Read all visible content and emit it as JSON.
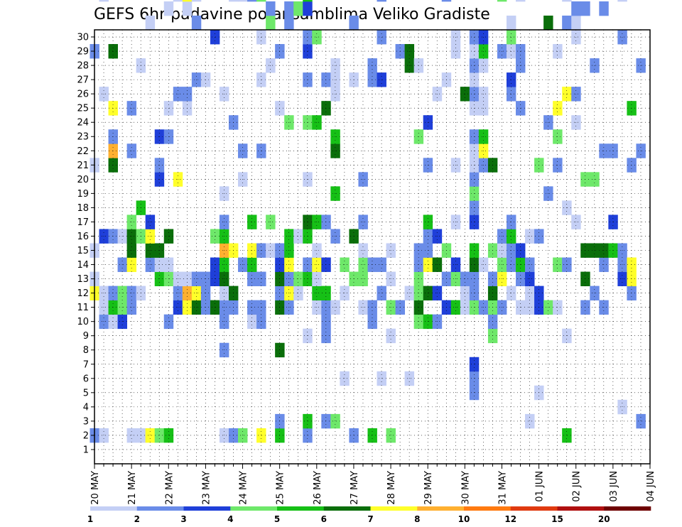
{
  "chart_data": {
    "type": "heatmap",
    "title": "GEFS 6hr padavine po ansamblima Veliko Gradiste",
    "x_tick_labels": [
      "20 MAY",
      "21 MAY",
      "22 MAY",
      "23 MAY",
      "24 MAY",
      "25 MAY",
      "26 MAY",
      "27 MAY",
      "28 MAY",
      "29 MAY",
      "30 MAY",
      "31 MAY",
      "01 JUN",
      "02 JUN",
      "03 JUN",
      "04 JUN"
    ],
    "y_tick_labels": [
      "1",
      "2",
      "3",
      "4",
      "5",
      "6",
      "7",
      "8",
      "9",
      "10",
      "11",
      "12",
      "13",
      "14",
      "15",
      "16",
      "17",
      "18",
      "19",
      "20",
      "21",
      "22",
      "23",
      "24",
      "25",
      "26",
      "27",
      "28",
      "29",
      "30"
    ],
    "members": 30,
    "time_steps": 61,
    "steps_per_day": 4,
    "grid": true,
    "colorbar": {
      "labels": [
        "1",
        "2",
        "3",
        "4",
        "5",
        "6",
        "7",
        "8",
        "10",
        "12",
        "15",
        "20"
      ],
      "colors": [
        "#c4cff5",
        "#6a8ce8",
        "#1f3fd9",
        "#6ee86a",
        "#16c016",
        "#0a6e0a",
        "#ffff2a",
        "#ffb030",
        "#ff7a10",
        "#e03a10",
        "#b01010",
        "#6e0000"
      ]
    },
    "grid_rows": [
      ".B.........GA.A.....A.......B.....A.....B.........A........",
      ".A.......BAA...C.........A......A..........B..E.....A.A.A..",
      ".........AEB...B....FHB.G...F....DDED.D.B..BGBCC...B.GA..B..",
      ".........CDD.B.A..................B........BC.......AA...A..",
      ".A........BB.GFFD....B..B...........F.........B....A....B.A.",
      ".A.........A...D.E.........A.....B.....A.......D............",
      ".G...........BFGC.............A....B..DB...D.......B...BA...",
      ".D..........EAF....CB.C..........AG.AB.........DB...........",
      ".E.......B..DA.F......B.A......A.GC...B...BEB..CA...C...E...",
      "..........CBA......G.....B......A.C..B.......H.........A..B.",
      "..........GHA...........AB.....AGD....BC....A...A...AB...A..",
      "..........FGB.............B...B.A.A.C..FH..BHA..............",
      "..........BBB.............A........G.AD.........DB..........",
      "..........F.CC.D.............C......F........G.............",
      ".A.....B.BBAFEHEB.A......A..........A..........B.....A.B...",
      ".B........BF..G........B........A........A.B...C..BH...A..A",
      ".D...........B.....A.B..........A..........A.....B.B....A..",
      ".........AB.BEG.E...............B...A.......EB.......AA...A",
      ".G.......BB.B.B......B....A..A..D...........CG.DB.....DB...",
      "..............A.D..........A..DB...DD...DCAE.EC.......B..CB",
      ".EB....F..FBFCB.........A...B...........BAAA....B.A.......B",
      "..........BGBGEE.......D......BB...D.............ED.F....B.",
      "...........AD..A...............D.....AC...B....C.A..A.....E",
      ".BE.....A...EB.EF..A...D..B.CB.CE..BE...A.B.AA..E..A...E...",
      "..........AEAGA.E......E.....D...B..CD.....D...G......A.B..",
      "..B.....BBBE.C..B.......F.B...........DB.B.GD.......D....BA",
      "..D.......A....B..E..FE..AAA...................EB..H.....B.",
      ".....A.....A.D.....................A....BBBB.B.............",
      ".B..........D..F..........A...B......E.....G.....D.....D...",
      "..........A.DDA.B..B.............D..E.A..A..AA.............",
      ".E.......BB..B............BB............B.........BA......B",
      ".....A.....B.B............C..B..B...............C.....B.AB.",
      ".D......A.D.A.A...........................A................",
      "..........B.................B......BD.F.B..................",
      ".....A.....A...............FF....GB.A.....................B",
      ".........DFDDBB.......D....A......EB.C.....A.....FHC.......",
      ".........E.F.GBBE...B..C...........................DD.E....",
      ".........B.C.F.C.........A..............A..D...............",
      "..........C.B.D...........A.....B........AG................",
      "..........E.DC..A...A.......AA.....E.....D.........BB......",
      "..........AAB............F.........B.........G...AA....BAB.",
      "....BBC...DBBFE.CBDBAAB.ABABAB.....BE....AB.B..B..BC.......",
      "..........B..A......BGE.AA.AEC.............................",
      "........DBDFB.D.....F..................A...A..B.....C......",
      "..........B.GDAB............B...D....D.....AA...........A..",
      "...........A.BBEB........BC.ADA.....A..B.A.BE.....FC.......",
      "..........A.BEC.........B..BB...A.....BCA........B.........",
      "..A.......AACB.A......................AD..D...B...AB.......",
      "....A.....CC...B....D.................B....E.A.........A...",
      "..........D.......B....B......F.........B..................",
      "..........A..D......B.D.G...A.........A........B........BA.",
      ".E......A....B...A.......G....B.A...D..A...B.G.BC...B...E..",
      "................A......A.B...AAB.....A.....BBB..A..........",
      "..........B.F.F....D...........B..........F.......A........",
      "...........B..F....D.......B...........DDB...B.AB........BB",
      "..........B..BF......B.........B.........CC.B...B.......B.G",
      "..............E.C....B.........................B........D..",
      "...A........CBB..............B..AD.A.......A.DB.B..B.......",
      "...........BGG......B...E.......................B.E.......G",
      "..B..................B.....B...............................",
      "..................................................B......B."
    ]
  }
}
